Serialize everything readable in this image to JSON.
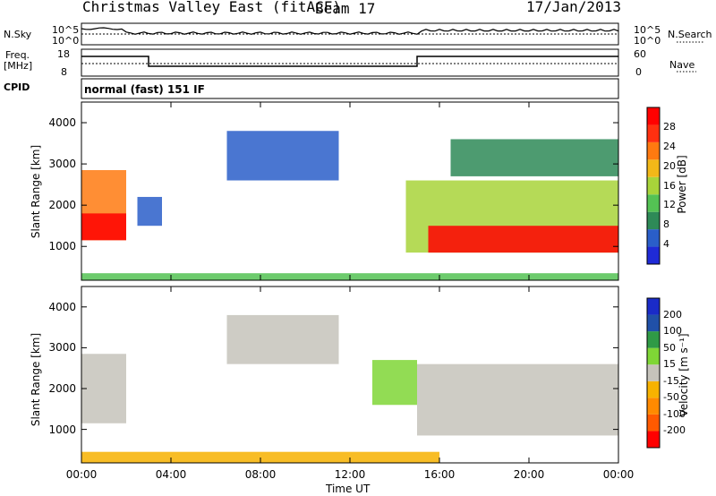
{
  "header": {
    "title": "Christmas Valley East (fitACF)",
    "beam": "Beam 17",
    "date": "17/Jan/2013"
  },
  "status_panels": {
    "nsky_label": "N.Sky",
    "nsearch_label": "N.Search",
    "freq_label_line1": "Freq.",
    "freq_label_line2": "[MHz]",
    "nave_label": "Nave",
    "cpid_label": "CPID",
    "cpid_value": "normal (fast) 151 IF",
    "noise_left_ticks": [
      "10^5",
      "10^0"
    ],
    "noise_right_ticks": [
      "10^5",
      "10^0"
    ],
    "freq_ticks": [
      "18",
      "8"
    ],
    "nave_ticks": [
      "60",
      "0"
    ]
  },
  "chart_data": [
    {
      "type": "heatmap",
      "panel": "power",
      "xlabel": "Time UT",
      "ylabel": "Slant Range [km]",
      "xlim": [
        0,
        24
      ],
      "ylim": [
        180,
        4500
      ],
      "x_ticks": [
        "00:00",
        "04:00",
        "08:00",
        "12:00",
        "16:00",
        "20:00",
        "00:00"
      ],
      "y_ticks": [
        "1000",
        "2000",
        "3000",
        "4000"
      ],
      "colorbar_label": "Power [dB]",
      "colorbar_ticks": [
        "28",
        "24",
        "20",
        "16",
        "12",
        "8",
        "4"
      ],
      "colorbar_range": [
        0,
        30
      ],
      "regions": [
        {
          "t_start": 0.0,
          "t_end": 2.0,
          "r_low": 1150,
          "r_high": 2850,
          "value": 20
        },
        {
          "t_start": 0.0,
          "t_end": 2.0,
          "r_low": 1150,
          "r_high": 1800,
          "value": 28
        },
        {
          "t_start": 2.5,
          "t_end": 3.6,
          "r_low": 1500,
          "r_high": 2200,
          "value": 6
        },
        {
          "t_start": 6.5,
          "t_end": 11.5,
          "r_low": 2600,
          "r_high": 3800,
          "value": 6
        },
        {
          "t_start": 14.5,
          "t_end": 24.0,
          "r_low": 850,
          "r_high": 2600,
          "value": 14
        },
        {
          "t_start": 15.5,
          "t_end": 24.0,
          "r_low": 850,
          "r_high": 1500,
          "value": 28
        },
        {
          "t_start": 16.5,
          "t_end": 24.0,
          "r_low": 2700,
          "r_high": 3600,
          "value": 8
        },
        {
          "t_start": 0.0,
          "t_end": 24.0,
          "r_low": 180,
          "r_high": 350,
          "value": 10
        }
      ]
    },
    {
      "type": "heatmap",
      "panel": "velocity",
      "xlabel": "Time UT",
      "ylabel": "Slant Range [km]",
      "xlim": [
        0,
        24
      ],
      "ylim": [
        180,
        4500
      ],
      "x_ticks": [
        "00:00",
        "04:00",
        "08:00",
        "12:00",
        "16:00",
        "20:00",
        "00:00"
      ],
      "y_ticks": [
        "1000",
        "2000",
        "3000",
        "4000"
      ],
      "colorbar_label": "Velocity [m s⁻¹]",
      "colorbar_ticks": [
        "200",
        "100",
        "50",
        "15",
        "-15",
        "-50",
        "-100",
        "-200"
      ],
      "colorbar_range": [
        -250,
        250
      ],
      "regions": [
        {
          "t_start": 0.0,
          "t_end": 2.0,
          "r_low": 1150,
          "r_high": 2850,
          "value": 0
        },
        {
          "t_start": 6.5,
          "t_end": 11.5,
          "r_low": 2600,
          "r_high": 3800,
          "value": 0
        },
        {
          "t_start": 13.0,
          "t_end": 15.0,
          "r_low": 1600,
          "r_high": 2700,
          "value": 30
        },
        {
          "t_start": 15.0,
          "t_end": 24.0,
          "r_low": 850,
          "r_high": 2600,
          "value": 0
        },
        {
          "t_start": 0.0,
          "t_end": 16.0,
          "r_low": 180,
          "r_high": 450,
          "value": -60
        }
      ]
    }
  ],
  "colors": {
    "power_scale": [
      "#1f2ad6",
      "#2a5ec9",
      "#2e8a57",
      "#54c254",
      "#a8d43a",
      "#f2b818",
      "#ff7a10",
      "#ff3010",
      "#ff0000"
    ],
    "velocity_scale": [
      "#ff0000",
      "#ff5a00",
      "#ff8a00",
      "#f7b200",
      "#c6c3bb",
      "#7fd636",
      "#2f9a46",
      "#2050a8",
      "#1a2bc8"
    ]
  }
}
